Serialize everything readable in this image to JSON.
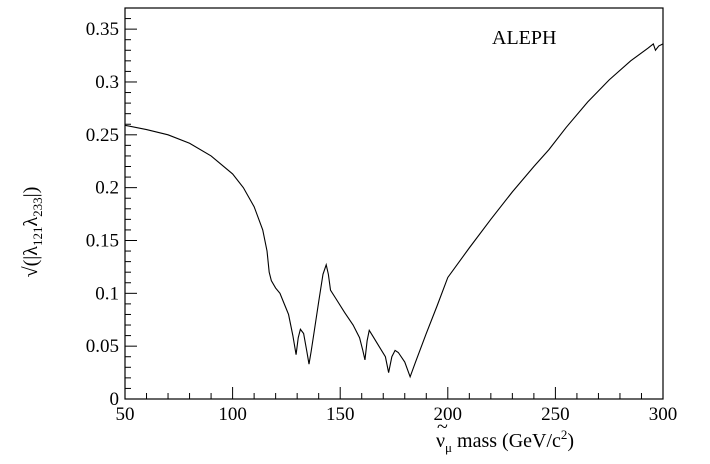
{
  "chart_data": {
    "type": "line",
    "title": "",
    "annotation": "ALEPH",
    "xlabel": {
      "nu": "ν",
      "mu": "μ",
      "text": " mass (GeV/c",
      "sup": "2",
      "close": ")"
    },
    "ylabel": {
      "prefix": "√(|λ",
      "sub1": "121",
      "mid": "λ",
      "sub2": "233",
      "suffix": "|)"
    },
    "xlim": [
      50,
      300
    ],
    "ylim": [
      0,
      0.37
    ],
    "xticks": [
      50,
      100,
      150,
      200,
      250,
      300
    ],
    "xtick_labels": [
      "50",
      "100",
      "150",
      "200",
      "250",
      "300"
    ],
    "yticks": [
      0,
      0.05,
      0.1,
      0.15,
      0.2,
      0.25,
      0.3,
      0.35
    ],
    "ytick_labels": [
      "0",
      "0.05",
      "0.1",
      "0.15",
      "0.2",
      "0.25",
      "0.3",
      "0.35"
    ],
    "grid": false,
    "series": [
      {
        "points": [
          [
            50,
            0.259
          ],
          [
            60,
            0.255
          ],
          [
            70,
            0.25
          ],
          [
            80,
            0.242
          ],
          [
            90,
            0.23
          ],
          [
            100,
            0.213
          ],
          [
            105,
            0.2
          ],
          [
            110,
            0.182
          ],
          [
            114,
            0.16
          ],
          [
            116,
            0.14
          ],
          [
            117,
            0.12
          ],
          [
            118,
            0.112
          ],
          [
            120,
            0.105
          ],
          [
            122,
            0.1
          ],
          [
            124,
            0.09
          ],
          [
            126,
            0.08
          ],
          [
            128,
            0.06
          ],
          [
            129.5,
            0.042
          ],
          [
            130.5,
            0.058
          ],
          [
            131.5,
            0.066
          ],
          [
            133,
            0.062
          ],
          [
            134.5,
            0.045
          ],
          [
            135.5,
            0.033
          ],
          [
            136.5,
            0.045
          ],
          [
            138,
            0.065
          ],
          [
            140,
            0.092
          ],
          [
            142,
            0.118
          ],
          [
            143.5,
            0.127
          ],
          [
            144.5,
            0.118
          ],
          [
            145.5,
            0.103
          ],
          [
            148,
            0.095
          ],
          [
            152,
            0.082
          ],
          [
            156,
            0.07
          ],
          [
            159,
            0.058
          ],
          [
            160.5,
            0.046
          ],
          [
            161.5,
            0.037
          ],
          [
            162.5,
            0.055
          ],
          [
            163.5,
            0.065
          ],
          [
            165,
            0.06
          ],
          [
            168,
            0.05
          ],
          [
            171,
            0.04
          ],
          [
            172.5,
            0.025
          ],
          [
            174,
            0.04
          ],
          [
            175.5,
            0.046
          ],
          [
            177,
            0.044
          ],
          [
            180,
            0.035
          ],
          [
            182.5,
            0.021
          ],
          [
            185,
            0.035
          ],
          [
            190,
            0.062
          ],
          [
            195,
            0.088
          ],
          [
            200,
            0.115
          ],
          [
            210,
            0.143
          ],
          [
            220,
            0.17
          ],
          [
            230,
            0.196
          ],
          [
            240,
            0.22
          ],
          [
            247,
            0.236
          ],
          [
            255,
            0.257
          ],
          [
            265,
            0.281
          ],
          [
            275,
            0.302
          ],
          [
            285,
            0.32
          ],
          [
            293,
            0.332
          ],
          [
            295.5,
            0.336
          ],
          [
            296.5,
            0.33
          ],
          [
            298,
            0.334
          ],
          [
            300,
            0.336
          ]
        ]
      }
    ],
    "line_color": "#000000"
  }
}
